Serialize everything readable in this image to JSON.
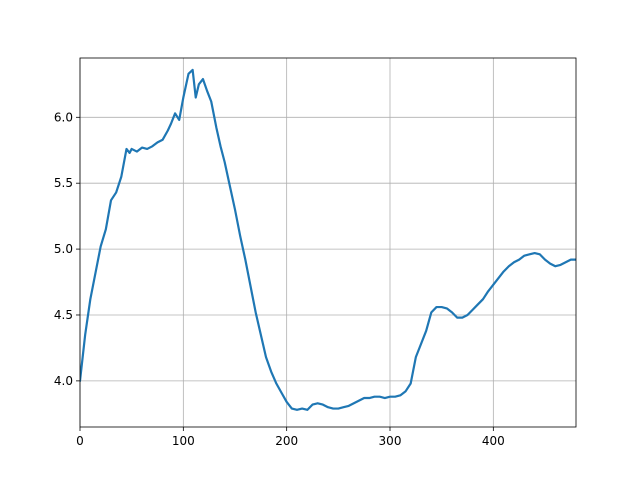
{
  "chart_data": {
    "type": "line",
    "title": "",
    "xlabel": "",
    "ylabel": "",
    "xlim": [
      0,
      480
    ],
    "ylim": [
      3.65,
      6.45
    ],
    "grid": true,
    "x_ticks": [
      0,
      100,
      200,
      300,
      400
    ],
    "y_ticks": [
      4.0,
      4.5,
      5.0,
      5.5,
      6.0
    ],
    "x_tick_labels": [
      "0",
      "100",
      "200",
      "300",
      "400"
    ],
    "y_tick_labels": [
      "4.0",
      "4.5",
      "5.0",
      "5.5",
      "6.0"
    ],
    "series": [
      {
        "color": "#1f77b4",
        "points": [
          [
            0,
            4.0
          ],
          [
            5,
            4.35
          ],
          [
            10,
            4.62
          ],
          [
            15,
            4.82
          ],
          [
            20,
            5.02
          ],
          [
            25,
            5.15
          ],
          [
            30,
            5.37
          ],
          [
            35,
            5.43
          ],
          [
            40,
            5.55
          ],
          [
            45,
            5.76
          ],
          [
            48,
            5.73
          ],
          [
            50,
            5.76
          ],
          [
            55,
            5.74
          ],
          [
            60,
            5.77
          ],
          [
            65,
            5.76
          ],
          [
            70,
            5.78
          ],
          [
            75,
            5.81
          ],
          [
            80,
            5.83
          ],
          [
            85,
            5.9
          ],
          [
            88,
            5.95
          ],
          [
            92,
            6.03
          ],
          [
            96,
            5.98
          ],
          [
            100,
            6.15
          ],
          [
            105,
            6.33
          ],
          [
            109,
            6.36
          ],
          [
            112,
            6.15
          ],
          [
            115,
            6.25
          ],
          [
            119,
            6.29
          ],
          [
            123,
            6.2
          ],
          [
            127,
            6.12
          ],
          [
            132,
            5.92
          ],
          [
            136,
            5.78
          ],
          [
            140,
            5.66
          ],
          [
            145,
            5.48
          ],
          [
            150,
            5.3
          ],
          [
            155,
            5.1
          ],
          [
            160,
            4.92
          ],
          [
            165,
            4.72
          ],
          [
            170,
            4.52
          ],
          [
            175,
            4.35
          ],
          [
            180,
            4.18
          ],
          [
            185,
            4.07
          ],
          [
            190,
            3.98
          ],
          [
            195,
            3.91
          ],
          [
            200,
            3.84
          ],
          [
            205,
            3.79
          ],
          [
            210,
            3.78
          ],
          [
            215,
            3.79
          ],
          [
            220,
            3.78
          ],
          [
            225,
            3.82
          ],
          [
            230,
            3.83
          ],
          [
            235,
            3.82
          ],
          [
            240,
            3.8
          ],
          [
            245,
            3.79
          ],
          [
            250,
            3.79
          ],
          [
            255,
            3.8
          ],
          [
            260,
            3.81
          ],
          [
            265,
            3.83
          ],
          [
            270,
            3.85
          ],
          [
            275,
            3.87
          ],
          [
            280,
            3.87
          ],
          [
            285,
            3.88
          ],
          [
            290,
            3.88
          ],
          [
            295,
            3.87
          ],
          [
            300,
            3.88
          ],
          [
            305,
            3.88
          ],
          [
            310,
            3.89
          ],
          [
            315,
            3.92
          ],
          [
            320,
            3.98
          ],
          [
            325,
            4.18
          ],
          [
            330,
            4.28
          ],
          [
            335,
            4.38
          ],
          [
            340,
            4.52
          ],
          [
            345,
            4.56
          ],
          [
            350,
            4.56
          ],
          [
            355,
            4.55
          ],
          [
            360,
            4.52
          ],
          [
            365,
            4.48
          ],
          [
            370,
            4.48
          ],
          [
            375,
            4.5
          ],
          [
            380,
            4.54
          ],
          [
            385,
            4.58
          ],
          [
            390,
            4.62
          ],
          [
            395,
            4.68
          ],
          [
            400,
            4.73
          ],
          [
            405,
            4.78
          ],
          [
            410,
            4.83
          ],
          [
            415,
            4.87
          ],
          [
            420,
            4.9
          ],
          [
            425,
            4.92
          ],
          [
            430,
            4.95
          ],
          [
            435,
            4.96
          ],
          [
            440,
            4.97
          ],
          [
            445,
            4.96
          ],
          [
            450,
            4.92
          ],
          [
            455,
            4.89
          ],
          [
            460,
            4.87
          ],
          [
            465,
            4.88
          ],
          [
            470,
            4.9
          ],
          [
            475,
            4.92
          ],
          [
            480,
            4.92
          ]
        ]
      }
    ]
  }
}
